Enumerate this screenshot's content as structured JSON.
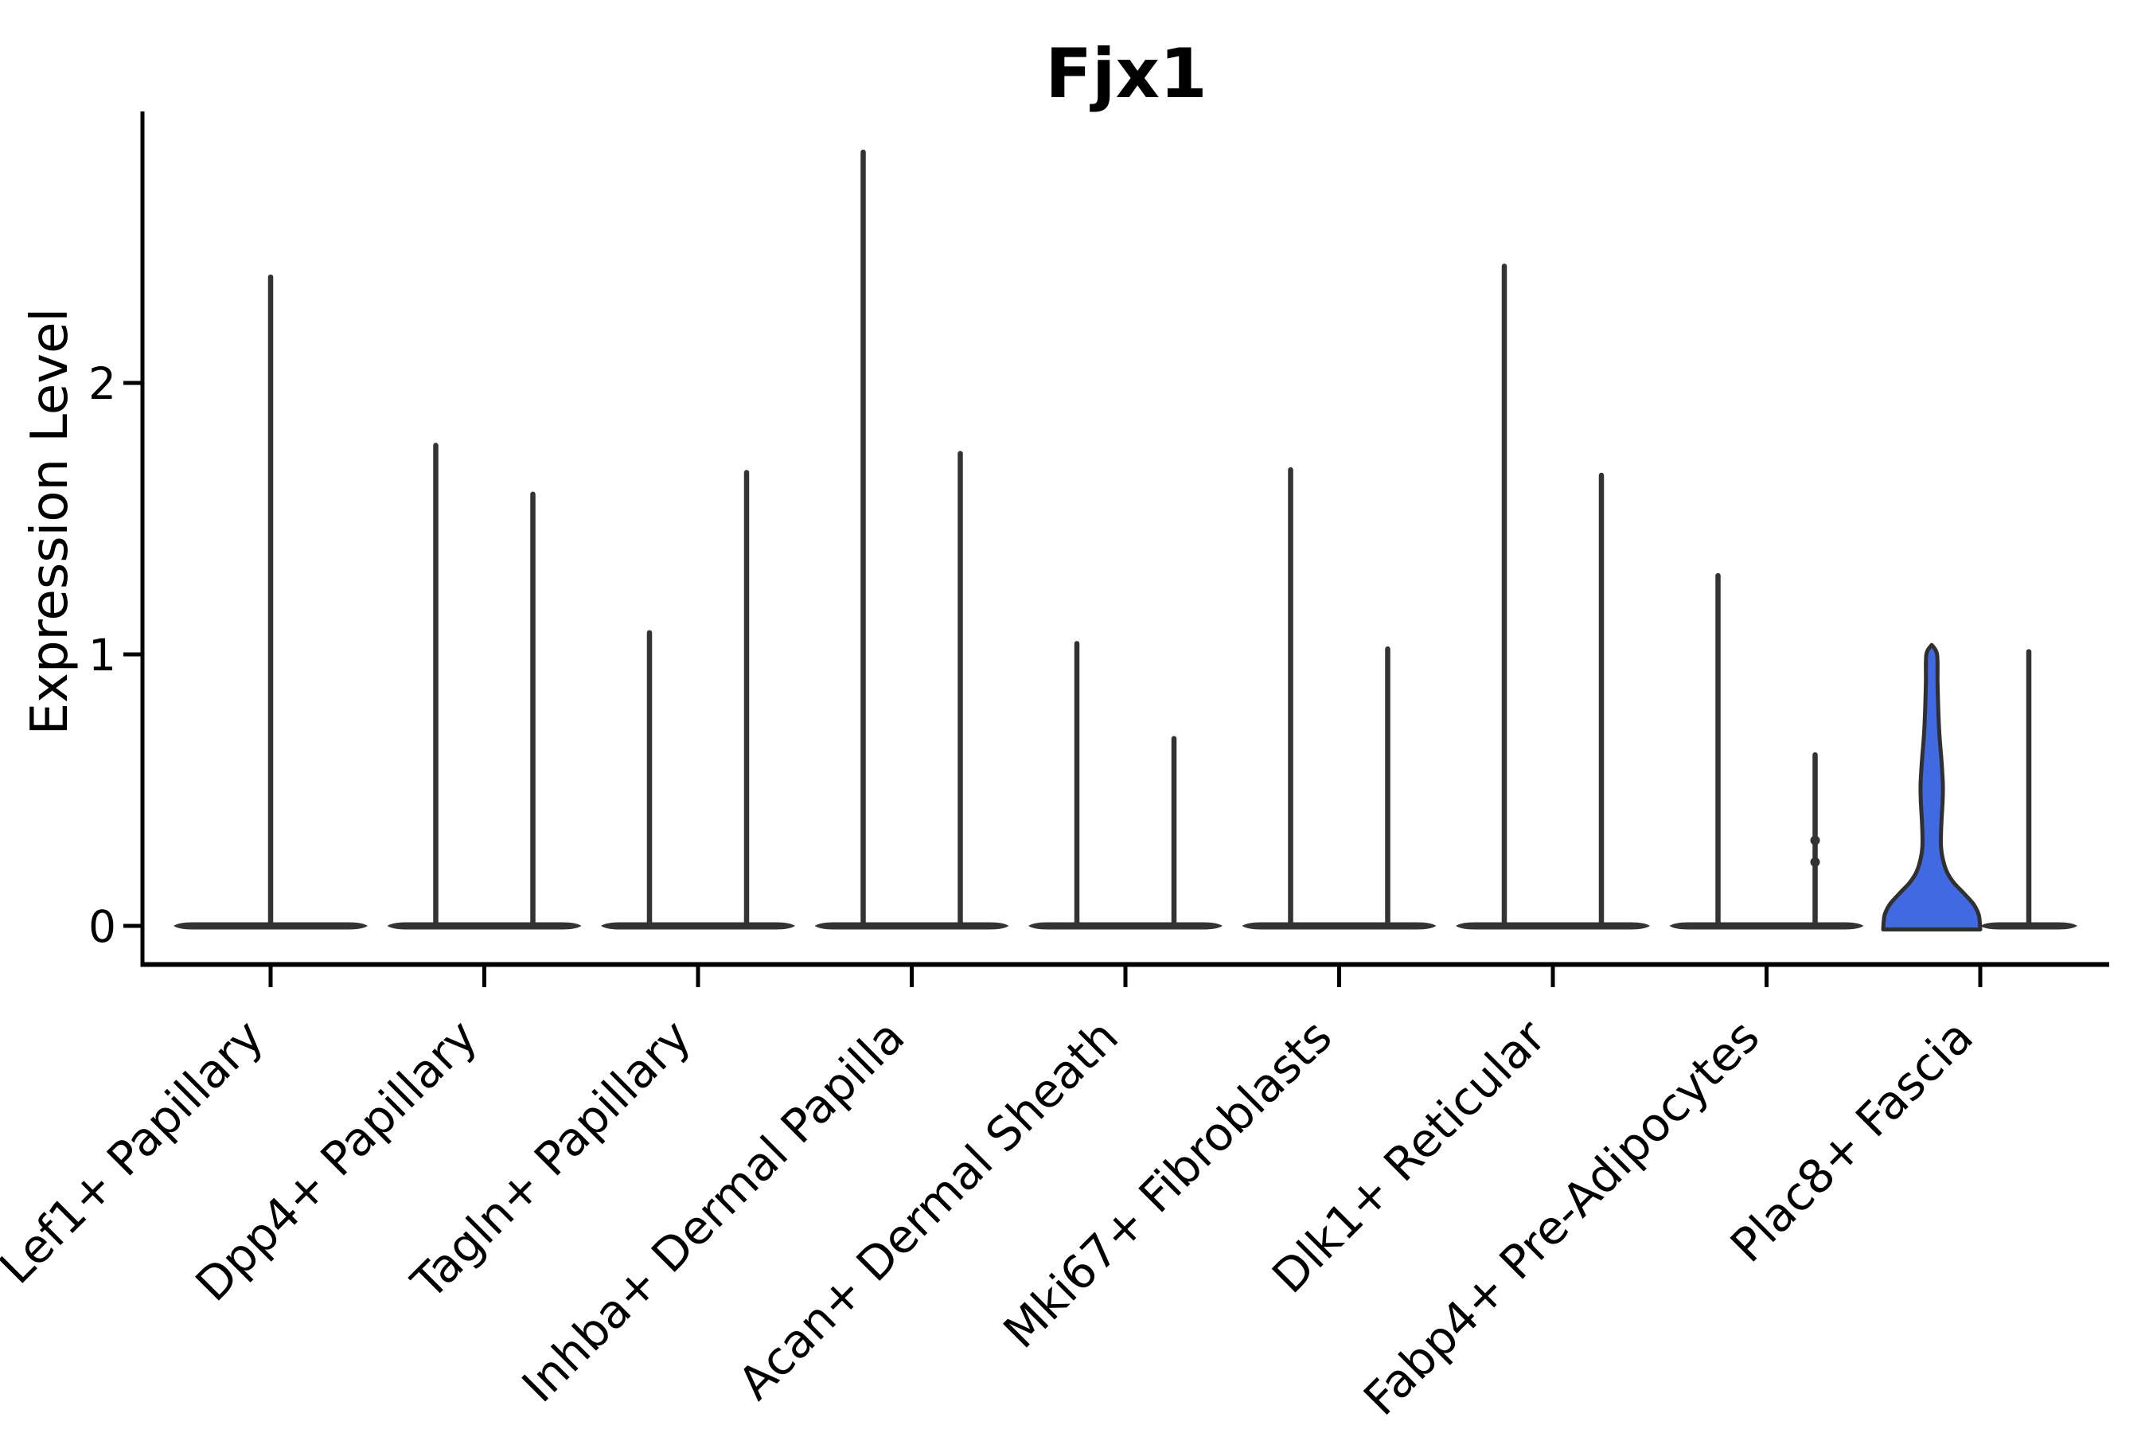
{
  "title": "Fjx1",
  "axes": {
    "ylabel": "Expression Level"
  },
  "chart_data": {
    "type": "violin",
    "title": "Fjx1",
    "ylabel": "Expression Level",
    "xlabel": "",
    "ylim": [
      -0.15,
      3.0
    ],
    "yticks": [
      0,
      1,
      2
    ],
    "grid": false,
    "legend": "none",
    "colors": {
      "outline": "#333333",
      "fill_highlight": "#4169E1",
      "axis": "#000000",
      "text": "#000000",
      "background": "#ffffff"
    },
    "categories": [
      "Lef1+ Papillary",
      "Dpp4+ Papillary",
      "Tagln+ Papillary",
      "Inhba+ Dermal Papilla",
      "Acan+ Dermal Sheath",
      "Mki67+ Fibroblasts",
      "Dlk1+ Reticular",
      "Fabp4+ Pre-Adipocytes",
      "Plac8+ Fascia"
    ],
    "violins": [
      {
        "category": "Lef1+ Papillary",
        "slot": "center",
        "peak": 2.39,
        "filled": false
      },
      {
        "category": "Dpp4+ Papillary",
        "slot": "left",
        "peak": 1.77,
        "filled": false
      },
      {
        "category": "Dpp4+ Papillary",
        "slot": "right",
        "peak": 1.59,
        "filled": false
      },
      {
        "category": "Tagln+ Papillary",
        "slot": "left",
        "peak": 1.08,
        "filled": false
      },
      {
        "category": "Tagln+ Papillary",
        "slot": "right",
        "peak": 1.67,
        "filled": false
      },
      {
        "category": "Inhba+ Dermal Papilla",
        "slot": "left",
        "peak": 2.85,
        "filled": false
      },
      {
        "category": "Inhba+ Dermal Papilla",
        "slot": "right",
        "peak": 1.74,
        "filled": false
      },
      {
        "category": "Acan+ Dermal Sheath",
        "slot": "left",
        "peak": 1.04,
        "filled": false
      },
      {
        "category": "Acan+ Dermal Sheath",
        "slot": "right",
        "peak": 0.69,
        "filled": false
      },
      {
        "category": "Mki67+ Fibroblasts",
        "slot": "left",
        "peak": 1.68,
        "filled": false
      },
      {
        "category": "Mki67+ Fibroblasts",
        "slot": "right",
        "peak": 1.02,
        "filled": false
      },
      {
        "category": "Dlk1+ Reticular",
        "slot": "left",
        "peak": 2.43,
        "filled": false
      },
      {
        "category": "Dlk1+ Reticular",
        "slot": "right",
        "peak": 1.66,
        "filled": false
      },
      {
        "category": "Fabp4+ Pre-Adipocytes",
        "slot": "left",
        "peak": 1.29,
        "filled": false
      },
      {
        "category": "Fabp4+ Pre-Adipocytes",
        "slot": "right",
        "peak": 0.63,
        "filled": false,
        "dots": [
          0.315,
          0.235
        ]
      },
      {
        "category": "Plac8+ Fascia",
        "slot": "left",
        "peak": 1.03,
        "filled": true,
        "profile": [
          [
            0,
            1.0
          ],
          [
            0.04,
            0.97
          ],
          [
            0.08,
            0.86
          ],
          [
            0.12,
            0.66
          ],
          [
            0.16,
            0.45
          ],
          [
            0.2,
            0.31
          ],
          [
            0.25,
            0.225
          ],
          [
            0.3,
            0.19
          ],
          [
            0.38,
            0.2
          ],
          [
            0.46,
            0.225
          ],
          [
            0.52,
            0.23
          ],
          [
            0.6,
            0.205
          ],
          [
            0.7,
            0.16
          ],
          [
            0.8,
            0.135
          ],
          [
            0.9,
            0.12
          ],
          [
            1.0,
            0.11
          ]
        ]
      },
      {
        "category": "Plac8+ Fascia",
        "slot": "right",
        "peak": 1.01,
        "filled": false
      }
    ]
  }
}
